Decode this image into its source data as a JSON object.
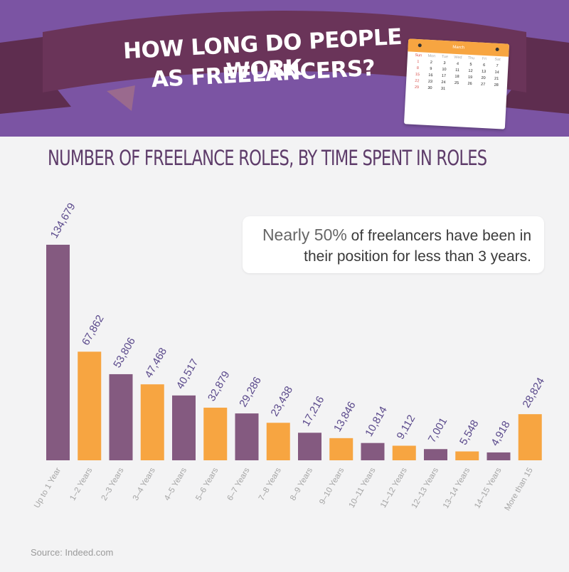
{
  "header": {
    "title_line1": "HOW LONG DO PEOPLE WORK",
    "title_line2": "AS FREELANCERS?"
  },
  "calendar": {
    "month": "March",
    "days_of_week": [
      "Sun",
      "Mon",
      "Tue",
      "Wed",
      "Thu",
      "Fri",
      "Sat"
    ],
    "dates": [
      "",
      "",
      "",
      "",
      "",
      "",
      "",
      "1",
      "2",
      "3",
      "4",
      "5",
      "6",
      "7",
      "8",
      "9",
      "10",
      "11",
      "12",
      "13",
      "14",
      "15",
      "16",
      "17",
      "18",
      "19",
      "20",
      "21",
      "22",
      "23",
      "24",
      "25",
      "26",
      "27",
      "28",
      "29",
      "30",
      "31",
      "",
      "",
      "",
      ""
    ]
  },
  "callout": {
    "highlight": "Nearly 50%",
    "rest_line1": " of freelancers have been in",
    "line2": "their position for less than 3 years."
  },
  "source": "Source: Indeed.com",
  "colors": {
    "purple": "#845a80",
    "orange": "#f7a541",
    "label": "#5b4a8c",
    "header": "#7b54a3"
  },
  "chart_data": {
    "type": "bar",
    "title": "NUMBER OF FREELANCE ROLES, BY TIME SPENT IN ROLES",
    "categories": [
      "Up to 1 Year",
      "1–2 Years",
      "2–3 Years",
      "3–4 Years",
      "4–5 Years",
      "5–6 Years",
      "6–7 Years",
      "7–8 Years",
      "8–9 Years",
      "9–10 Years",
      "10–11 Years",
      "11–12 Years",
      "12–13 Years",
      "13–14 Years",
      "14–15 Years",
      "More than 15"
    ],
    "values": [
      134679,
      67862,
      53806,
      47468,
      40517,
      32879,
      29286,
      23438,
      17216,
      13846,
      10814,
      9112,
      7001,
      5548,
      4918,
      28824
    ],
    "value_labels": [
      "134,679",
      "67,862",
      "53,806",
      "47,468",
      "40,517",
      "32,879",
      "29,286",
      "23,438",
      "17,216",
      "13,846",
      "10,814",
      "9,112",
      "7,001",
      "5,548",
      "4,918",
      "28,824"
    ],
    "bar_colors": [
      "purple",
      "orange",
      "purple",
      "orange",
      "purple",
      "orange",
      "purple",
      "orange",
      "purple",
      "orange",
      "purple",
      "orange",
      "purple",
      "orange",
      "purple",
      "orange"
    ],
    "ylim": [
      0,
      134679
    ],
    "grid": false,
    "legend": "none"
  }
}
